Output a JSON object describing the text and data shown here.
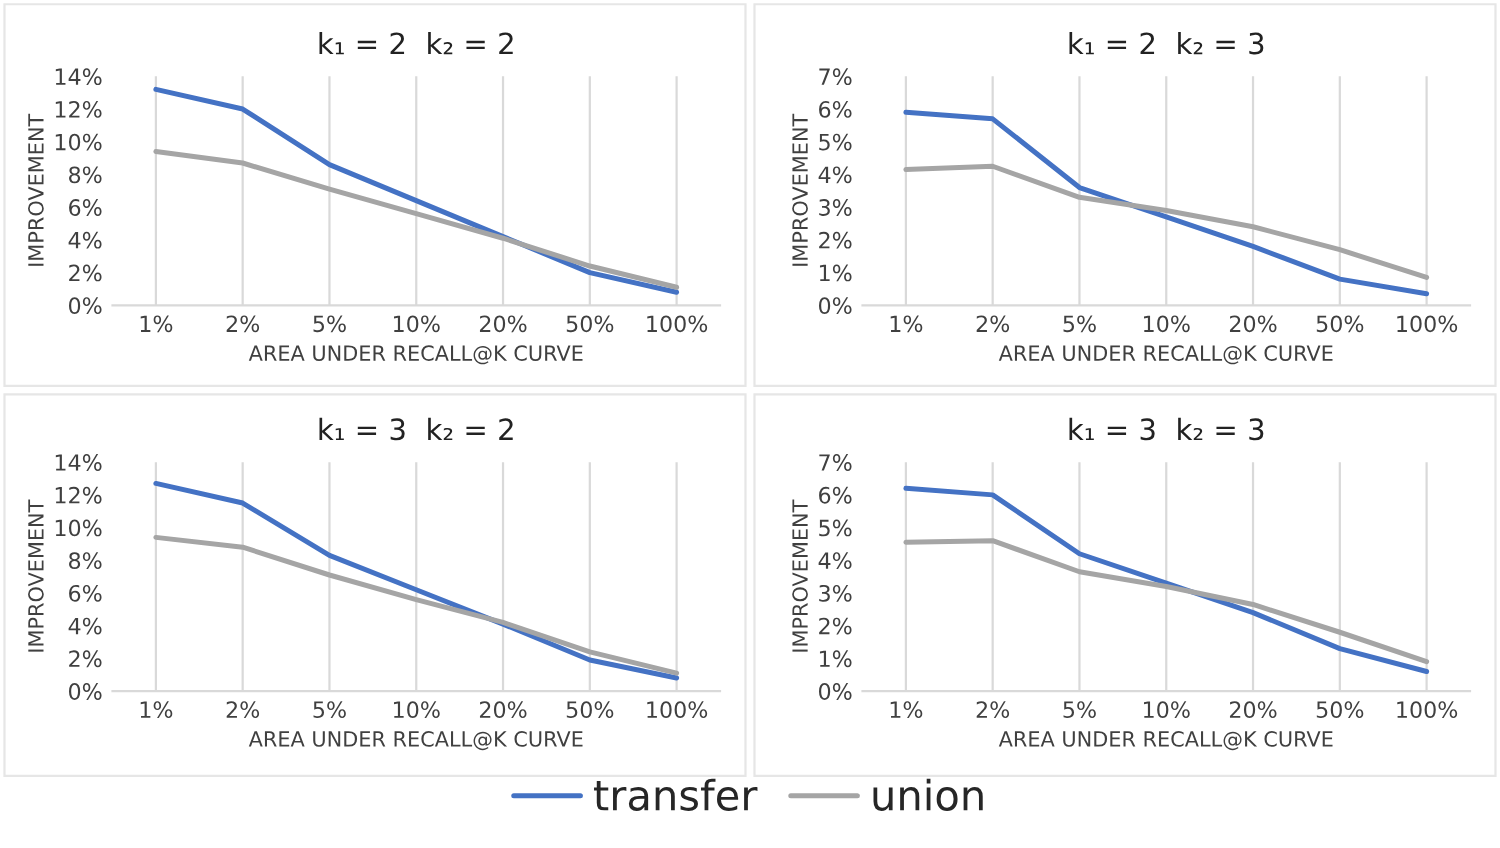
{
  "chart_data": [
    {
      "type": "line",
      "title": "k₁ = 2  k₂ = 2",
      "xlabel": "AREA UNDER RECALL@K CURVE",
      "ylabel": "IMPROVEMENT",
      "categories": [
        "1%",
        "2%",
        "5%",
        "10%",
        "20%",
        "50%",
        "100%"
      ],
      "ylim": [
        0,
        14
      ],
      "yticks": [
        {
          "value": 0,
          "label": "0%"
        },
        {
          "value": 2,
          "label": "2%"
        },
        {
          "value": 4,
          "label": "4%"
        },
        {
          "value": 6,
          "label": "6%"
        },
        {
          "value": 8,
          "label": "8%"
        },
        {
          "value": 10,
          "label": "10%"
        },
        {
          "value": 12,
          "label": "12%"
        },
        {
          "value": 14,
          "label": "14%"
        }
      ],
      "grid": "x",
      "legend": "bottom",
      "series": [
        {
          "name": "transfer",
          "color": "#4472c4",
          "values": [
            13.2,
            12.0,
            8.6,
            6.4,
            4.2,
            2.0,
            0.8
          ]
        },
        {
          "name": "union",
          "color": "#a5a5a5",
          "values": [
            9.4,
            8.7,
            7.1,
            5.6,
            4.1,
            2.4,
            1.1
          ]
        }
      ]
    },
    {
      "type": "line",
      "title": "k₁ = 2  k₂ = 3",
      "xlabel": "AREA UNDER RECALL@K CURVE",
      "ylabel": "IMPROVEMENT",
      "categories": [
        "1%",
        "2%",
        "5%",
        "10%",
        "20%",
        "50%",
        "100%"
      ],
      "ylim": [
        0,
        7
      ],
      "yticks": [
        {
          "value": 0,
          "label": "0%"
        },
        {
          "value": 1,
          "label": "1%"
        },
        {
          "value": 2,
          "label": "2%"
        },
        {
          "value": 3,
          "label": "3%"
        },
        {
          "value": 4,
          "label": "4%"
        },
        {
          "value": 5,
          "label": "5%"
        },
        {
          "value": 6,
          "label": "6%"
        },
        {
          "value": 7,
          "label": "7%"
        }
      ],
      "grid": "x",
      "series": [
        {
          "color": "#4472c4",
          "values": [
            5.9,
            5.7,
            3.6,
            2.7,
            1.8,
            0.8,
            0.35
          ]
        },
        {
          "color": "#a5a5a5",
          "values": [
            4.15,
            4.25,
            3.3,
            2.9,
            2.4,
            1.7,
            0.85
          ]
        }
      ]
    },
    {
      "type": "line",
      "title": "k₁ = 3  k₂ = 2",
      "xlabel": "AREA UNDER RECALL@K CURVE",
      "ylabel": "IMPROVEMENT",
      "categories": [
        "1%",
        "2%",
        "5%",
        "10%",
        "20%",
        "50%",
        "100%"
      ],
      "ylim": [
        0,
        14
      ],
      "yticks": [
        {
          "value": 0,
          "label": "0%"
        },
        {
          "value": 2,
          "label": "2%"
        },
        {
          "value": 4,
          "label": "4%"
        },
        {
          "value": 6,
          "label": "6%"
        },
        {
          "value": 8,
          "label": "8%"
        },
        {
          "value": 10,
          "label": "10%"
        },
        {
          "value": 12,
          "label": "12%"
        },
        {
          "value": 14,
          "label": "14%"
        }
      ],
      "grid": "x",
      "series": [
        {
          "color": "#4472c4",
          "values": [
            12.7,
            11.5,
            8.3,
            6.2,
            4.1,
            1.9,
            0.8
          ]
        },
        {
          "color": "#a5a5a5",
          "values": [
            9.4,
            8.8,
            7.1,
            5.6,
            4.2,
            2.4,
            1.1
          ]
        }
      ]
    },
    {
      "type": "line",
      "title": "k₁ = 3  k₂ = 3",
      "xlabel": "AREA UNDER RECALL@K CURVE",
      "ylabel": "IMPROVEMENT",
      "categories": [
        "1%",
        "2%",
        "5%",
        "10%",
        "20%",
        "50%",
        "100%"
      ],
      "ylim": [
        0,
        7
      ],
      "yticks": [
        {
          "value": 0,
          "label": "0%"
        },
        {
          "value": 1,
          "label": "1%"
        },
        {
          "value": 2,
          "label": "2%"
        },
        {
          "value": 3,
          "label": "3%"
        },
        {
          "value": 4,
          "label": "4%"
        },
        {
          "value": 5,
          "label": "5%"
        },
        {
          "value": 6,
          "label": "6%"
        },
        {
          "value": 7,
          "label": "7%"
        }
      ],
      "grid": "x",
      "series": [
        {
          "color": "#4472c4",
          "values": [
            6.2,
            6.0,
            4.2,
            3.3,
            2.4,
            1.3,
            0.6
          ]
        },
        {
          "color": "#a5a5a5",
          "values": [
            4.55,
            4.6,
            3.65,
            3.2,
            2.65,
            1.8,
            0.9
          ]
        }
      ]
    }
  ]
}
